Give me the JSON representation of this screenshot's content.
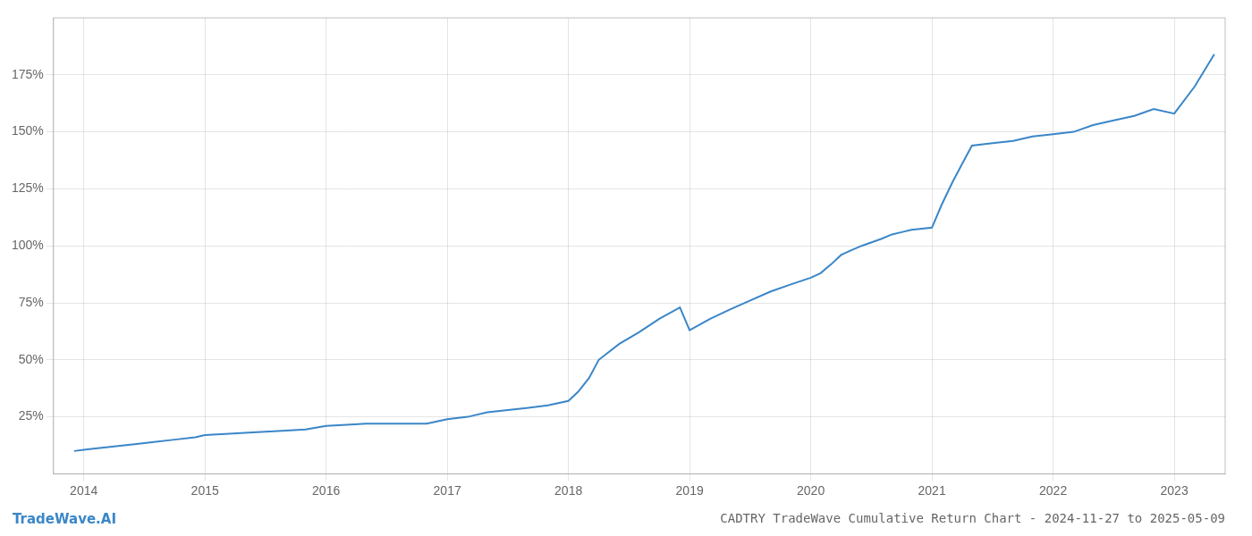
{
  "chart_data": {
    "type": "line",
    "title": "CADTRY TradeWave Cumulative Return Chart - 2024-11-27 to 2025-05-09",
    "annotations": [
      "TradeWave.AI"
    ],
    "x": [
      2013.92,
      2014.0,
      2014.08,
      2014.25,
      2014.42,
      2014.58,
      2014.75,
      2014.92,
      2015.0,
      2015.17,
      2015.33,
      2015.5,
      2015.67,
      2015.83,
      2016.0,
      2016.17,
      2016.33,
      2016.5,
      2016.67,
      2016.83,
      2017.0,
      2017.17,
      2017.33,
      2017.5,
      2017.67,
      2017.83,
      2018.0,
      2018.08,
      2018.17,
      2018.25,
      2018.42,
      2018.58,
      2018.75,
      2018.92,
      2019.0,
      2019.17,
      2019.33,
      2019.5,
      2019.67,
      2019.83,
      2020.0,
      2020.08,
      2020.17,
      2020.25,
      2020.33,
      2020.42,
      2020.58,
      2020.67,
      2020.75,
      2020.83,
      2021.0,
      2021.08,
      2021.17,
      2021.25,
      2021.33,
      2021.5,
      2021.67,
      2021.83,
      2022.0,
      2022.17,
      2022.33,
      2022.5,
      2022.67,
      2022.83,
      2023.0,
      2023.17,
      2023.33
    ],
    "values": [
      10,
      10.5,
      11,
      12,
      13,
      14,
      15,
      16,
      17,
      17.5,
      18,
      18.5,
      19,
      19.5,
      21,
      21.5,
      22,
      22,
      22,
      22,
      24,
      25,
      27,
      28,
      29,
      30,
      32,
      36,
      42,
      50,
      57,
      62,
      68,
      73,
      63,
      68,
      72,
      76,
      80,
      83,
      86,
      88,
      92,
      96,
      98,
      100,
      103,
      105,
      106,
      107,
      108,
      118,
      128,
      136,
      144,
      145,
      146,
      148,
      149,
      150,
      153,
      155,
      157,
      160,
      158,
      170,
      184
    ],
    "color": "#3a86c8",
    "xlim": [
      2013.75,
      2023.42
    ],
    "xticks": [
      2014,
      2015,
      2016,
      2017,
      2018,
      2019,
      2020,
      2021,
      2022,
      2023
    ],
    "ylim": [
      0,
      200
    ],
    "yticks": [
      {
        "value": 25,
        "label": "25%"
      },
      {
        "value": 50,
        "label": "50%"
      },
      {
        "value": 75,
        "label": "75%"
      },
      {
        "value": 100,
        "label": "100%"
      },
      {
        "value": 125,
        "label": "125%"
      },
      {
        "value": 150,
        "label": "150%"
      },
      {
        "value": 175,
        "label": "175%"
      }
    ],
    "grid": true
  }
}
